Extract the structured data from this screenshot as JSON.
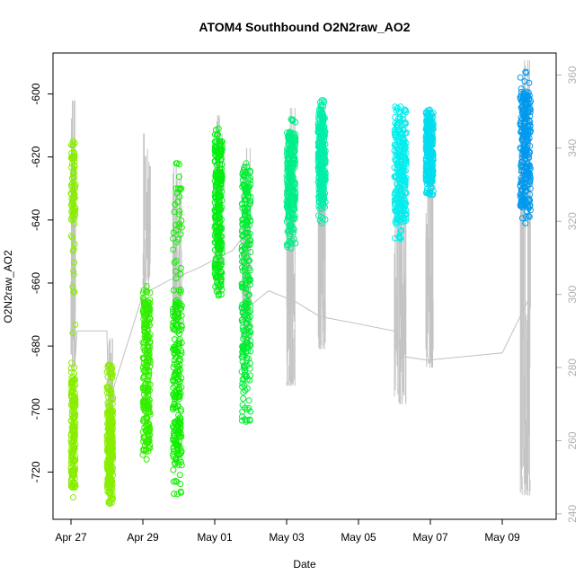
{
  "chart_data": {
    "type": "scatter",
    "title": "ATOM4 Southbound O2N2raw_AO2",
    "xlabel": "Date",
    "ylabel": "O2N2raw_AO2",
    "xlim": [
      "2016-04-26T12:00",
      "2016-05-10T12:00"
    ],
    "ylim": [
      -735,
      -587
    ],
    "y2lim": [
      238.5,
      366
    ],
    "x_ticks": [
      {
        "date": "2016-04-27",
        "label": "Apr 27"
      },
      {
        "date": "2016-04-29",
        "label": "Apr 29"
      },
      {
        "date": "2016-05-01",
        "label": "May 01"
      },
      {
        "date": "2016-05-03",
        "label": "May 03"
      },
      {
        "date": "2016-05-05",
        "label": "May 05"
      },
      {
        "date": "2016-05-07",
        "label": "May 07"
      },
      {
        "date": "2016-05-09",
        "label": "May 09"
      }
    ],
    "y_ticks": [
      -720,
      -700,
      -680,
      -660,
      -640,
      -620,
      -600
    ],
    "y2_ticks": [
      240,
      260,
      280,
      300,
      320,
      340,
      360
    ],
    "grid": false,
    "secondary_line": {
      "color": "#c0c0c0",
      "points": [
        [
          "2016-04-27T03:00",
          283
        ],
        [
          "2016-04-27T04:00",
          290
        ],
        [
          "2016-04-28T00:00",
          290
        ],
        [
          "2016-04-28T01:00",
          270
        ],
        [
          "2016-04-29T00:00",
          300
        ],
        [
          "2016-04-29T18:00",
          304
        ],
        [
          "2016-04-30T12:00",
          307
        ],
        [
          "2016-05-01T12:00",
          312
        ],
        [
          "2016-05-01T23:00",
          318
        ],
        [
          "2016-05-02T00:00",
          297
        ],
        [
          "2016-05-02T12:00",
          301
        ],
        [
          "2016-05-03T06:00",
          298
        ],
        [
          "2016-05-03T22:00",
          294
        ],
        [
          "2016-05-06T00:00",
          290
        ],
        [
          "2016-05-06T06:00",
          283
        ],
        [
          "2016-05-06T22:00",
          282
        ],
        [
          "2016-05-09T00:00",
          284
        ],
        [
          "2016-05-09T18:00",
          299
        ]
      ]
    },
    "series": [
      {
        "start": "2016-04-27T00:00",
        "end": "2016-04-27T03:00",
        "color": "#88ee00",
        "ymin": -728,
        "ymax": -615,
        "core_min": -725,
        "core_max": -690,
        "core2_min": -640,
        "core2_max": -616,
        "spike_max": 353,
        "spike_min": 280
      },
      {
        "start": "2016-04-28T00:00",
        "end": "2016-04-28T04:00",
        "color": "#88ee00",
        "ymin": -730,
        "ymax": -686,
        "core_min": -725,
        "core_max": -700,
        "spike_max": 288,
        "spike_min": 250
      },
      {
        "start": "2016-04-29T00:00",
        "end": "2016-04-29T05:00",
        "color": "#33ee00",
        "ymin": -716,
        "ymax": -661,
        "core_min": -713,
        "core_max": -665,
        "spike_max": 344,
        "spike_min": 300
      },
      {
        "start": "2016-04-29T20:00",
        "end": "2016-04-30T02:00",
        "color": "#11ee00",
        "ymin": -727,
        "ymax": -622,
        "core_min": -718,
        "core_max": -665,
        "spike_max": 335,
        "spike_min": 290
      },
      {
        "start": "2016-05-01T00:00",
        "end": "2016-05-01T05:00",
        "color": "#00ee11",
        "ymin": -664,
        "ymax": -611,
        "core_min": -660,
        "core_max": -615,
        "spike_max": 349,
        "spike_min": 300
      },
      {
        "start": "2016-05-01T18:00",
        "end": "2016-05-02T00:00",
        "color": "#00ee33",
        "ymin": -704,
        "ymax": -622,
        "core_min": -690,
        "core_max": -625,
        "spike_max": 340,
        "spike_min": 285
      },
      {
        "start": "2016-05-03T00:00",
        "end": "2016-05-03T06:00",
        "color": "#00ee88",
        "ymin": -649,
        "ymax": -608,
        "core_min": -640,
        "core_max": -612,
        "spike_max": 351,
        "spike_min": 275
      },
      {
        "start": "2016-05-03T21:00",
        "end": "2016-05-04T02:00",
        "color": "#00eeaa",
        "ymin": -641,
        "ymax": -602,
        "core_min": -635,
        "core_max": -606,
        "spike_max": 352,
        "spike_min": 285
      },
      {
        "start": "2016-05-06T00:00",
        "end": "2016-05-06T08:00",
        "color": "#00eeee",
        "ymin": -646,
        "ymax": -604,
        "core_min": -641,
        "core_max": -609,
        "spike_max": 349,
        "spike_min": 270
      },
      {
        "start": "2016-05-06T21:00",
        "end": "2016-05-07T02:00",
        "color": "#00ddee",
        "ymin": -632,
        "ymax": -605,
        "core_min": -628,
        "core_max": -608,
        "spike_max": 349,
        "spike_min": 280
      },
      {
        "start": "2016-05-09T12:00",
        "end": "2016-05-09T19:00",
        "color": "#0099ee",
        "ymin": -641,
        "ymax": -593,
        "core_min": -636,
        "core_max": -600,
        "spike_max": 364,
        "spike_min": 245
      }
    ]
  }
}
